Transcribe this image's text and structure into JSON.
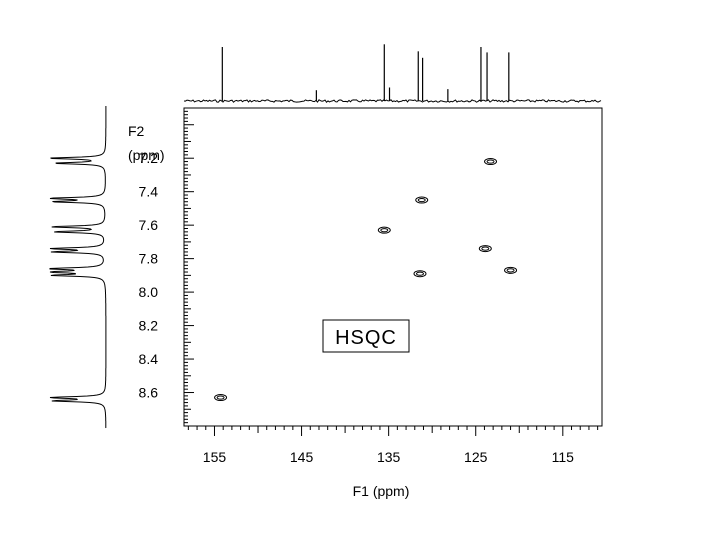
{
  "chart_data": {
    "type": "scatter",
    "annotation": "HSQC",
    "xlabel": "F1 (ppm)",
    "ylabel_line1": "F2",
    "ylabel_line2": "(ppm)",
    "x_axis_reversed": true,
    "y_axis_reversed": true,
    "xlim": [
      158.5,
      110.5
    ],
    "ylim": [
      6.9,
      8.8
    ],
    "x_ticks": [
      155,
      145,
      135,
      125,
      115
    ],
    "x_tick_labels": [
      "155",
      "145",
      "135",
      "125",
      "115"
    ],
    "y_ticks": [
      7.2,
      7.4,
      7.6,
      7.8,
      8.0,
      8.2,
      8.4,
      8.6
    ],
    "y_tick_labels": [
      "7.2",
      "7.4",
      "7.6",
      "7.8",
      "8.0",
      "8.2",
      "8.4",
      "8.6"
    ],
    "cross_peaks": [
      {
        "x": 154.3,
        "y": 8.63
      },
      {
        "x": 135.5,
        "y": 7.63
      },
      {
        "x": 131.2,
        "y": 7.45
      },
      {
        "x": 131.4,
        "y": 7.89
      },
      {
        "x": 123.3,
        "y": 7.22
      },
      {
        "x": 123.9,
        "y": 7.74
      },
      {
        "x": 121.0,
        "y": 7.87
      }
    ],
    "f1_projection_peaks": [
      {
        "x": 154.1,
        "h": 1.0
      },
      {
        "x": 143.3,
        "h": 0.2
      },
      {
        "x": 135.5,
        "h": 1.05
      },
      {
        "x": 134.9,
        "h": 0.25
      },
      {
        "x": 131.6,
        "h": 0.92
      },
      {
        "x": 131.1,
        "h": 0.8
      },
      {
        "x": 128.2,
        "h": 0.22
      },
      {
        "x": 124.4,
        "h": 1.0
      },
      {
        "x": 123.7,
        "h": 0.9
      },
      {
        "x": 121.2,
        "h": 0.9
      }
    ],
    "f2_projection_peaks": [
      {
        "y": 7.2,
        "h": 1.0
      },
      {
        "y": 7.23,
        "h": 0.9
      },
      {
        "y": 7.44,
        "h": 1.0
      },
      {
        "y": 7.46,
        "h": 0.9
      },
      {
        "y": 7.61,
        "h": 0.95
      },
      {
        "y": 7.64,
        "h": 0.9
      },
      {
        "y": 7.74,
        "h": 0.95
      },
      {
        "y": 7.76,
        "h": 0.9
      },
      {
        "y": 7.86,
        "h": 1.0
      },
      {
        "y": 7.88,
        "h": 0.95
      },
      {
        "y": 7.9,
        "h": 0.9
      },
      {
        "y": 8.63,
        "h": 1.0
      },
      {
        "y": 8.65,
        "h": 0.9
      }
    ],
    "colors": {
      "line": "#000000",
      "background": "#ffffff"
    }
  }
}
